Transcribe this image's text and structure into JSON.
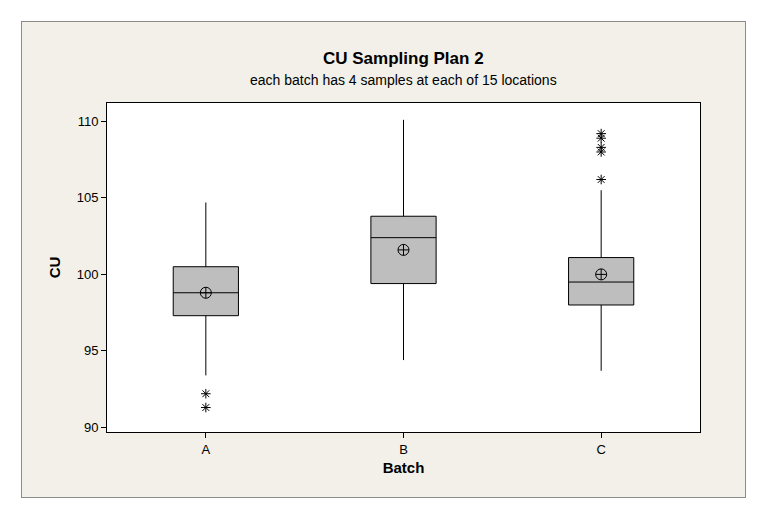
{
  "chart_data": {
    "type": "box",
    "title": "CU Sampling Plan 2",
    "subtitle": "each batch has 4 samples at each of 15 locations",
    "x_label": "Batch",
    "y_label": "CU",
    "categories": [
      "A",
      "B",
      "C"
    ],
    "lower_whisker": [
      93.4,
      94.4,
      93.7
    ],
    "q1": [
      97.3,
      99.4,
      98.0
    ],
    "median": [
      98.8,
      102.4,
      99.5
    ],
    "q3": [
      100.5,
      103.8,
      101.1
    ],
    "upper_whisker": [
      104.7,
      110.1,
      105.5
    ],
    "mean": [
      98.8,
      101.6,
      100.0
    ],
    "outliers": [
      [
        92.2,
        91.3
      ],
      [],
      [
        106.2,
        108.0,
        108.3,
        108.9,
        109.2
      ]
    ],
    "color": "#bebebe",
    "marker": "asterisk",
    "ylim": [
      89.7,
      111.2
    ],
    "yticks": [
      90,
      95,
      100,
      105,
      110
    ],
    "grid": false
  }
}
